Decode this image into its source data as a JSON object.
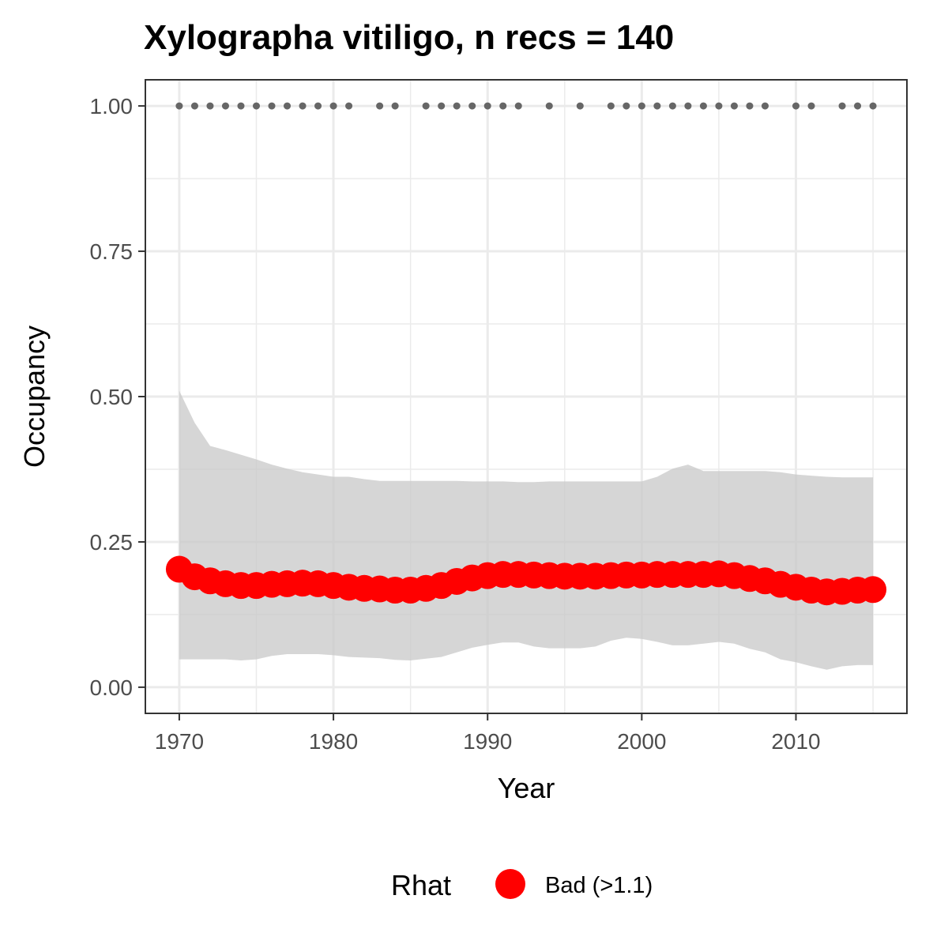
{
  "chart_data": {
    "type": "line",
    "title": "Xylographa vitiligo, n recs = 140",
    "xlabel": "Year",
    "ylabel": "Occupancy",
    "xlim": [
      1967.8,
      11017.2
    ],
    "ylim": [
      -0.045,
      1.045
    ],
    "x_ticks": [
      1970,
      1980,
      1990,
      2000,
      2010
    ],
    "x_tick_labels": [
      "1970",
      "1980",
      "1990",
      "2000",
      "2010"
    ],
    "y_ticks": [
      0,
      0.25,
      0.5,
      0.75,
      1
    ],
    "y_tick_labels": [
      "0.00",
      "0.25",
      "0.50",
      "0.75",
      "1.00"
    ],
    "grid": true,
    "legend": {
      "title": "Rhat",
      "placement": "bottom",
      "entries": [
        {
          "label": "Bad (>1.1)",
          "color": "#ff0000"
        }
      ]
    },
    "colors": {
      "point": "#ff0000",
      "ribbon": "#c8c8c8",
      "records": "#666666",
      "grid": "#ebebeb",
      "panel_border": "#333333"
    },
    "series": [
      {
        "years": [
          1970,
          1971,
          1972,
          1973,
          1974,
          1975,
          1976,
          1977,
          1978,
          1979,
          1980,
          1981,
          1982,
          1983,
          1984,
          1985,
          1986,
          1987,
          1988,
          1989,
          1990,
          1991,
          1992,
          1993,
          1994,
          1995,
          1996,
          1997,
          1998,
          1999,
          2000,
          2001,
          2002,
          2003,
          2004,
          2005,
          2006,
          2007,
          2008,
          2009,
          2010,
          2011,
          2012,
          2013,
          2014,
          2015
        ],
        "mean": [
          0.203,
          0.19,
          0.183,
          0.178,
          0.175,
          0.175,
          0.177,
          0.178,
          0.179,
          0.178,
          0.175,
          0.172,
          0.17,
          0.169,
          0.167,
          0.167,
          0.17,
          0.175,
          0.182,
          0.188,
          0.192,
          0.194,
          0.194,
          0.193,
          0.192,
          0.191,
          0.191,
          0.191,
          0.192,
          0.193,
          0.193,
          0.194,
          0.194,
          0.194,
          0.194,
          0.195,
          0.192,
          0.187,
          0.183,
          0.177,
          0.172,
          0.167,
          0.164,
          0.165,
          0.167,
          0.168
        ],
        "upper": [
          0.51,
          0.455,
          0.415,
          0.408,
          0.4,
          0.392,
          0.383,
          0.376,
          0.37,
          0.366,
          0.362,
          0.362,
          0.358,
          0.355,
          0.355,
          0.355,
          0.355,
          0.355,
          0.355,
          0.354,
          0.354,
          0.354,
          0.353,
          0.353,
          0.354,
          0.354,
          0.354,
          0.354,
          0.354,
          0.354,
          0.354,
          0.362,
          0.376,
          0.383,
          0.372,
          0.372,
          0.372,
          0.372,
          0.372,
          0.37,
          0.366,
          0.364,
          0.362,
          0.361,
          0.361,
          0.361
        ],
        "lower": [
          0.048,
          0.048,
          0.048,
          0.048,
          0.046,
          0.048,
          0.054,
          0.057,
          0.057,
          0.057,
          0.055,
          0.052,
          0.051,
          0.05,
          0.047,
          0.046,
          0.049,
          0.052,
          0.06,
          0.068,
          0.073,
          0.077,
          0.077,
          0.07,
          0.067,
          0.067,
          0.067,
          0.07,
          0.08,
          0.085,
          0.083,
          0.078,
          0.072,
          0.072,
          0.075,
          0.078,
          0.075,
          0.066,
          0.06,
          0.048,
          0.043,
          0.036,
          0.03,
          0.036,
          0.038,
          0.038
        ]
      }
    ],
    "record_years": [
      1970,
      1971,
      1972,
      1973,
      1974,
      1975,
      1976,
      1977,
      1978,
      1979,
      1980,
      1981,
      1983,
      1984,
      1986,
      1987,
      1988,
      1989,
      1990,
      1991,
      1992,
      1994,
      1996,
      1998,
      1999,
      2000,
      2001,
      2002,
      2003,
      2004,
      2005,
      2006,
      2007,
      2008,
      2010,
      2011,
      2013,
      2014,
      2015
    ],
    "record_value": 1.0
  }
}
